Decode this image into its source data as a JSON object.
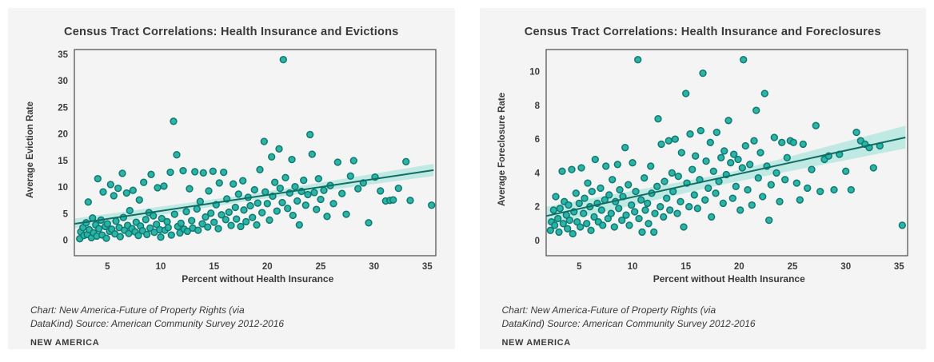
{
  "page": {
    "background": "#ffffff",
    "card_background": "#f4f4f4"
  },
  "colors": {
    "dot_fill": "#26b2a6",
    "dot_stroke": "#0f7a6f",
    "trend_line": "#0f6e64",
    "band": "#b7e6e0",
    "frame": "#4a4a4a",
    "text": "#3a3a3a",
    "tick_text": "#3d3d3d"
  },
  "chart_data": [
    {
      "type": "scatter",
      "title": "Census Tract Correlations: Health Insurance and Evictions",
      "xlabel": "Percent without Health Insurance",
      "ylabel": "Average Eviction Rate",
      "xlim": [
        1.9,
        35.8
      ],
      "ylim": [
        -2.9,
        35.9
      ],
      "x_ticks": [
        5,
        10,
        15,
        20,
        25,
        30,
        35
      ],
      "y_ticks": [
        0,
        5,
        10,
        15,
        20,
        25,
        30,
        35
      ],
      "grid": false,
      "legend": "none",
      "trend": {
        "type": "linear",
        "x": [
          1.9,
          35.6
        ],
        "y": [
          3.1,
          13.2
        ]
      },
      "band": {
        "upper": [
          [
            1.9,
            4.1
          ],
          [
            18.7,
            8.75
          ],
          [
            35.6,
            14.4
          ]
        ],
        "lower": [
          [
            1.9,
            2.2
          ],
          [
            18.7,
            7.55
          ],
          [
            35.6,
            12.1
          ]
        ]
      },
      "points": [
        [
          2.4,
          0.3
        ],
        [
          2.5,
          1.6
        ],
        [
          2.7,
          2.4
        ],
        [
          2.8,
          0.9
        ],
        [
          3.0,
          3.3
        ],
        [
          3.1,
          1.1
        ],
        [
          3.2,
          7.2
        ],
        [
          3.3,
          2.0
        ],
        [
          3.5,
          0.5
        ],
        [
          3.6,
          4.2
        ],
        [
          3.7,
          1.4
        ],
        [
          3.9,
          2.9
        ],
        [
          4.0,
          0.8
        ],
        [
          4.1,
          11.6
        ],
        [
          4.2,
          2.2
        ],
        [
          4.4,
          3.8
        ],
        [
          4.5,
          1.0
        ],
        [
          4.6,
          9.1
        ],
        [
          4.8,
          2.6
        ],
        [
          4.9,
          0.4
        ],
        [
          5.0,
          3.1
        ],
        [
          5.2,
          1.7
        ],
        [
          5.3,
          10.5
        ],
        [
          5.4,
          2.1
        ],
        [
          5.6,
          8.4
        ],
        [
          5.7,
          1.2
        ],
        [
          5.8,
          3.6
        ],
        [
          6.0,
          9.8
        ],
        [
          6.1,
          2.4
        ],
        [
          6.2,
          0.7
        ],
        [
          6.4,
          12.6
        ],
        [
          6.5,
          4.3
        ],
        [
          6.6,
          1.9
        ],
        [
          6.8,
          8.9
        ],
        [
          6.9,
          2.8
        ],
        [
          7.0,
          1.3
        ],
        [
          7.1,
          5.6
        ],
        [
          7.3,
          2.2
        ],
        [
          7.4,
          9.4
        ],
        [
          7.6,
          1.6
        ],
        [
          7.7,
          3.4
        ],
        [
          7.9,
          0.9
        ],
        [
          8.0,
          7.6
        ],
        [
          8.1,
          2.7
        ],
        [
          8.3,
          1.8
        ],
        [
          8.4,
          10.9
        ],
        [
          8.6,
          3.9
        ],
        [
          8.7,
          1.1
        ],
        [
          8.9,
          5.2
        ],
        [
          9.0,
          2.3
        ],
        [
          9.1,
          12.4
        ],
        [
          9.3,
          4.6
        ],
        [
          9.4,
          1.5
        ],
        [
          9.6,
          3.0
        ],
        [
          9.7,
          9.9
        ],
        [
          9.9,
          2.0
        ],
        [
          10.0,
          0.6
        ],
        [
          10.1,
          4.1
        ],
        [
          10.3,
          10.2
        ],
        [
          10.4,
          1.9
        ],
        [
          10.6,
          3.5
        ],
        [
          10.7,
          2.4
        ],
        [
          10.9,
          12.8
        ],
        [
          11.0,
          1.0
        ],
        [
          11.2,
          22.4
        ],
        [
          11.3,
          4.9
        ],
        [
          11.5,
          16.1
        ],
        [
          11.6,
          2.6
        ],
        [
          11.8,
          1.4
        ],
        [
          11.9,
          3.2
        ],
        [
          12.1,
          13.1
        ],
        [
          12.2,
          2.1
        ],
        [
          12.4,
          5.4
        ],
        [
          12.5,
          1.7
        ],
        [
          12.7,
          9.7
        ],
        [
          12.9,
          3.7
        ],
        [
          13.0,
          2.3
        ],
        [
          13.2,
          12.9
        ],
        [
          13.4,
          5.9
        ],
        [
          13.5,
          1.9
        ],
        [
          13.7,
          7.3
        ],
        [
          13.9,
          3.1
        ],
        [
          14.0,
          12.7
        ],
        [
          14.2,
          4.4
        ],
        [
          14.4,
          2.5
        ],
        [
          14.5,
          9.3
        ],
        [
          14.7,
          5.1
        ],
        [
          14.9,
          13.0
        ],
        [
          15.0,
          3.4
        ],
        [
          15.2,
          6.7
        ],
        [
          15.4,
          2.2
        ],
        [
          15.5,
          10.8
        ],
        [
          15.7,
          4.8
        ],
        [
          15.9,
          12.8
        ],
        [
          16.1,
          3.9
        ],
        [
          16.2,
          7.8
        ],
        [
          16.4,
          5.3
        ],
        [
          16.6,
          2.8
        ],
        [
          16.8,
          10.6
        ],
        [
          17.0,
          6.2
        ],
        [
          17.1,
          4.0
        ],
        [
          17.3,
          8.7
        ],
        [
          17.5,
          2.6
        ],
        [
          17.7,
          11.2
        ],
        [
          17.8,
          5.7
        ],
        [
          18.0,
          3.5
        ],
        [
          18.2,
          8.1
        ],
        [
          18.4,
          6.5
        ],
        [
          18.6,
          4.3
        ],
        [
          18.8,
          9.5
        ],
        [
          19.0,
          2.9
        ],
        [
          19.1,
          7.0
        ],
        [
          19.3,
          13.3
        ],
        [
          19.5,
          5.2
        ],
        [
          19.7,
          18.6
        ],
        [
          19.8,
          9.1
        ],
        [
          20.0,
          6.9
        ],
        [
          20.2,
          3.8
        ],
        [
          20.4,
          15.7
        ],
        [
          20.5,
          8.3
        ],
        [
          20.7,
          10.9
        ],
        [
          20.9,
          5.5
        ],
        [
          21.1,
          17.2
        ],
        [
          21.2,
          9.8
        ],
        [
          21.4,
          7.1
        ],
        [
          21.5,
          34.0
        ],
        [
          21.7,
          11.8
        ],
        [
          21.9,
          6.0
        ],
        [
          22.1,
          8.9
        ],
        [
          22.3,
          15.2
        ],
        [
          22.4,
          4.7
        ],
        [
          22.6,
          10.1
        ],
        [
          22.8,
          7.4
        ],
        [
          23.0,
          2.9
        ],
        [
          23.2,
          9.2
        ],
        [
          23.4,
          11.3
        ],
        [
          23.6,
          6.6
        ],
        [
          23.8,
          8.6
        ],
        [
          24.0,
          19.9
        ],
        [
          24.2,
          16.2
        ],
        [
          24.4,
          9.0
        ],
        [
          24.6,
          5.8
        ],
        [
          24.8,
          11.6
        ],
        [
          25.0,
          7.7
        ],
        [
          25.3,
          9.4
        ],
        [
          25.6,
          4.5
        ],
        [
          25.9,
          10.3
        ],
        [
          26.2,
          6.9
        ],
        [
          26.6,
          14.7
        ],
        [
          27.0,
          8.8
        ],
        [
          27.4,
          4.9
        ],
        [
          27.8,
          12.1
        ],
        [
          28.1,
          15.0
        ],
        [
          28.5,
          9.7
        ],
        [
          29.0,
          10.8
        ],
        [
          29.5,
          3.3
        ],
        [
          30.1,
          11.9
        ],
        [
          30.6,
          9.3
        ],
        [
          31.1,
          7.4
        ],
        [
          31.5,
          7.5
        ],
        [
          31.8,
          7.6
        ],
        [
          32.3,
          9.8
        ],
        [
          33.0,
          14.8
        ],
        [
          33.4,
          7.5
        ],
        [
          35.4,
          6.6
        ]
      ],
      "caption_lines": [
        "Chart: New America-Future of Property Rights (via",
        "DataKind) Source: American Community Survey 2012-2016"
      ],
      "attribution": "NEW AMERICA"
    },
    {
      "type": "scatter",
      "title": "Census Tract Correlations: Health Insurance and Foreclosures",
      "xlabel": "Percent without Health Insurance",
      "ylabel": "Average Foreclosure Rate",
      "xlim": [
        1.9,
        35.8
      ],
      "ylim": [
        -0.9,
        11.3
      ],
      "x_ticks": [
        5,
        10,
        15,
        20,
        25,
        30,
        35
      ],
      "y_ticks": [
        0,
        2,
        4,
        6,
        8,
        10
      ],
      "grid": false,
      "legend": "none",
      "trend": {
        "type": "linear",
        "x": [
          1.9,
          35.6
        ],
        "y": [
          1.45,
          6.1
        ]
      },
      "band": {
        "upper": [
          [
            1.9,
            2.0
          ],
          [
            18.7,
            3.95
          ],
          [
            35.6,
            6.8
          ]
        ],
        "lower": [
          [
            1.9,
            0.9
          ],
          [
            18.7,
            3.35
          ],
          [
            35.6,
            5.45
          ]
        ]
      },
      "points": [
        [
          2.3,
          0.6
        ],
        [
          2.4,
          1.1
        ],
        [
          2.6,
          1.8
        ],
        [
          2.7,
          0.9
        ],
        [
          2.8,
          2.6
        ],
        [
          3.0,
          1.3
        ],
        [
          3.1,
          0.5
        ],
        [
          3.2,
          1.9
        ],
        [
          3.4,
          4.1
        ],
        [
          3.5,
          1.0
        ],
        [
          3.6,
          2.3
        ],
        [
          3.8,
          1.5
        ],
        [
          3.9,
          0.7
        ],
        [
          4.0,
          2.1
        ],
        [
          4.1,
          1.2
        ],
        [
          4.3,
          4.2
        ],
        [
          4.4,
          0.4
        ],
        [
          4.5,
          1.7
        ],
        [
          4.7,
          2.8
        ],
        [
          4.8,
          1.1
        ],
        [
          5.0,
          2.2
        ],
        [
          5.1,
          0.8
        ],
        [
          5.2,
          4.3
        ],
        [
          5.4,
          1.6
        ],
        [
          5.5,
          2.5
        ],
        [
          5.7,
          1.0
        ],
        [
          5.8,
          3.4
        ],
        [
          6.0,
          2.0
        ],
        [
          6.1,
          0.6
        ],
        [
          6.2,
          2.9
        ],
        [
          6.4,
          1.4
        ],
        [
          6.5,
          4.8
        ],
        [
          6.7,
          2.2
        ],
        [
          6.8,
          1.1
        ],
        [
          7.0,
          3.1
        ],
        [
          7.1,
          1.8
        ],
        [
          7.2,
          0.9
        ],
        [
          7.4,
          2.4
        ],
        [
          7.5,
          4.4
        ],
        [
          7.7,
          1.3
        ],
        [
          7.8,
          2.7
        ],
        [
          8.0,
          1.6
        ],
        [
          8.1,
          3.6
        ],
        [
          8.3,
          0.8
        ],
        [
          8.4,
          2.3
        ],
        [
          8.6,
          4.5
        ],
        [
          8.7,
          1.9
        ],
        [
          8.8,
          3.0
        ],
        [
          9.0,
          1.2
        ],
        [
          9.1,
          2.6
        ],
        [
          9.3,
          5.5
        ],
        [
          9.4,
          1.5
        ],
        [
          9.6,
          3.3
        ],
        [
          9.7,
          0.9
        ],
        [
          9.9,
          2.1
        ],
        [
          10.0,
          4.6
        ],
        [
          10.2,
          1.7
        ],
        [
          10.3,
          2.9
        ],
        [
          10.5,
          10.7
        ],
        [
          10.6,
          1.3
        ],
        [
          10.8,
          2.4
        ],
        [
          10.9,
          0.5
        ],
        [
          11.1,
          3.7
        ],
        [
          11.2,
          1.8
        ],
        [
          11.4,
          2.2
        ],
        [
          11.5,
          1.0
        ],
        [
          11.7,
          4.4
        ],
        [
          11.8,
          2.8
        ],
        [
          12.0,
          0.5
        ],
        [
          12.1,
          1.6
        ],
        [
          12.3,
          3.2
        ],
        [
          12.4,
          7.2
        ],
        [
          12.6,
          2.0
        ],
        [
          12.7,
          5.7
        ],
        [
          12.9,
          1.4
        ],
        [
          13.0,
          3.5
        ],
        [
          13.2,
          2.5
        ],
        [
          13.4,
          5.9
        ],
        [
          13.5,
          1.8
        ],
        [
          13.7,
          4.0
        ],
        [
          13.8,
          2.9
        ],
        [
          14.0,
          6.0
        ],
        [
          14.2,
          1.6
        ],
        [
          14.3,
          3.8
        ],
        [
          14.5,
          2.3
        ],
        [
          14.6,
          5.2
        ],
        [
          14.8,
          0.8
        ],
        [
          15.0,
          8.7
        ],
        [
          15.1,
          3.4
        ],
        [
          15.3,
          2.0
        ],
        [
          15.4,
          6.3
        ],
        [
          15.6,
          4.2
        ],
        [
          15.8,
          2.7
        ],
        [
          15.9,
          5.0
        ],
        [
          16.1,
          1.9
        ],
        [
          16.3,
          3.6
        ],
        [
          16.4,
          6.5
        ],
        [
          16.6,
          9.9
        ],
        [
          16.8,
          2.4
        ],
        [
          16.9,
          4.7
        ],
        [
          17.1,
          3.1
        ],
        [
          17.3,
          5.8
        ],
        [
          17.4,
          1.4
        ],
        [
          17.6,
          4.1
        ],
        [
          17.8,
          2.8
        ],
        [
          17.9,
          6.4
        ],
        [
          18.1,
          3.5
        ],
        [
          18.3,
          4.9
        ],
        [
          18.5,
          2.2
        ],
        [
          18.6,
          5.3
        ],
        [
          18.8,
          3.9
        ],
        [
          19.0,
          7.1
        ],
        [
          19.2,
          4.6
        ],
        [
          19.4,
          2.5
        ],
        [
          19.5,
          5.1
        ],
        [
          19.7,
          3.2
        ],
        [
          19.9,
          4.8
        ],
        [
          20.1,
          1.8
        ],
        [
          20.3,
          4.3
        ],
        [
          20.4,
          10.7
        ],
        [
          20.6,
          5.6
        ],
        [
          20.8,
          3.0
        ],
        [
          21.0,
          4.5
        ],
        [
          21.2,
          2.1
        ],
        [
          21.4,
          5.9
        ],
        [
          21.6,
          7.7
        ],
        [
          21.8,
          3.7
        ],
        [
          22.0,
          5.2
        ],
        [
          22.2,
          2.6
        ],
        [
          22.4,
          8.7
        ],
        [
          22.6,
          4.4
        ],
        [
          22.8,
          1.2
        ],
        [
          23.0,
          3.3
        ],
        [
          23.3,
          6.1
        ],
        [
          23.5,
          4.0
        ],
        [
          23.8,
          2.3
        ],
        [
          24.0,
          5.8
        ],
        [
          24.3,
          3.6
        ],
        [
          24.5,
          4.9
        ],
        [
          24.8,
          5.9
        ],
        [
          25.1,
          5.8
        ],
        [
          25.4,
          3.4
        ],
        [
          25.7,
          2.4
        ],
        [
          26.0,
          5.7
        ],
        [
          26.4,
          3.1
        ],
        [
          26.8,
          4.2
        ],
        [
          27.2,
          6.8
        ],
        [
          27.6,
          2.9
        ],
        [
          28.0,
          4.8
        ],
        [
          28.4,
          5.0
        ],
        [
          28.9,
          3.0
        ],
        [
          29.4,
          5.1
        ],
        [
          30.0,
          4.1
        ],
        [
          30.5,
          3.0
        ],
        [
          31.0,
          6.4
        ],
        [
          31.4,
          5.9
        ],
        [
          31.8,
          5.7
        ],
        [
          32.2,
          5.5
        ],
        [
          32.6,
          4.3
        ],
        [
          33.2,
          5.6
        ],
        [
          35.3,
          0.9
        ]
      ],
      "caption_lines": [
        "Chart: New America-Future of Property Rights (via",
        "DataKind) Source: American Community Survey 2012-2016"
      ],
      "attribution": "NEW AMERICA"
    }
  ]
}
